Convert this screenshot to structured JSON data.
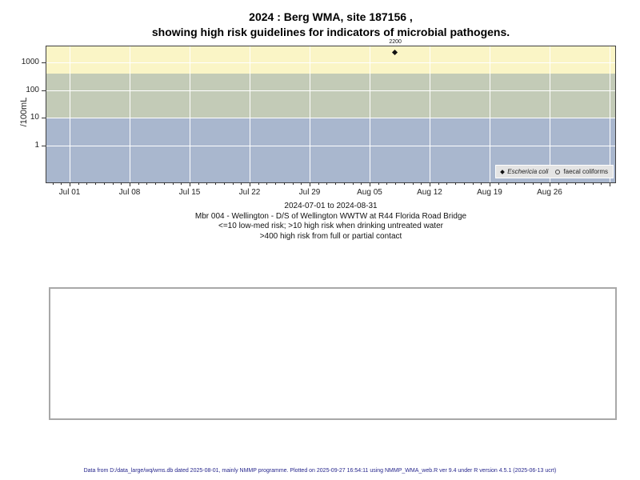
{
  "title": {
    "line1": "2024 : Berg WMA, site 187156 ,",
    "line2": "showing high risk guidelines for indicators of microbial pathogens."
  },
  "chart_data": {
    "type": "scatter",
    "title": "2024 : Berg WMA, site 187156, showing high risk guidelines for indicators of microbial pathogens.",
    "y_axis": {
      "label": "/100mL",
      "scale": "log10",
      "ticks": [
        1,
        10,
        100,
        1000
      ]
    },
    "x_axis": {
      "range": "2024-07-01 to 2024-08-31",
      "tick_labels": [
        "Jul 01",
        "Jul 08",
        "Jul 15",
        "Jul 22",
        "Jul 29",
        "Aug 05",
        "Aug 12",
        "Aug 19",
        "Aug 26"
      ],
      "tick_days": [
        0,
        7,
        14,
        21,
        28,
        35,
        42,
        49,
        56
      ],
      "minor_tick_every_days": 1,
      "grid_days": [
        0,
        7,
        14,
        21,
        28,
        35,
        42,
        49,
        56,
        63
      ]
    },
    "bands": [
      {
        "name": "high risk from full or partial contact (>400)",
        "from": 400,
        "to": "top",
        "color": "#faf5c6"
      },
      {
        "name": "high risk when drinking untreated water (>10)",
        "from": 10,
        "to": 400,
        "color": "#c3cbb7"
      },
      {
        "name": "low-med risk (<=10)",
        "from": "bottom",
        "to": 10,
        "color": "#a9b7ce"
      }
    ],
    "series": [
      {
        "name": "Eschericia coli",
        "symbol": "filled-diamond",
        "italic": true,
        "points": [
          {
            "day": 38,
            "date": "2024-08-08",
            "value": 2200,
            "label": "2200"
          }
        ]
      },
      {
        "name": "faecal coliforms",
        "symbol": "open-circle",
        "italic": false,
        "points": []
      }
    ],
    "legend": {
      "position": "bottom-right"
    }
  },
  "caption": {
    "lines": [
      "2024-07-01 to 2024-08-31",
      "Mbr 004 - Wellington - D/S of Wellington WWTW at R44 Florida Road Bridge",
      "<=10 low-med risk; >10 high risk when drinking untreated water",
      ">400 high risk from full or partial contact"
    ]
  },
  "footer": {
    "text": "Data from D:/data_large/wq/wms.db dated 2025-08-01, mainly NMMP programme. Plotted on 2025-09-27 16:54:11 using NMMP_WMA_web.R ver 9.4 under R version 4.5.1 (2025-06-13 ucrt)"
  }
}
